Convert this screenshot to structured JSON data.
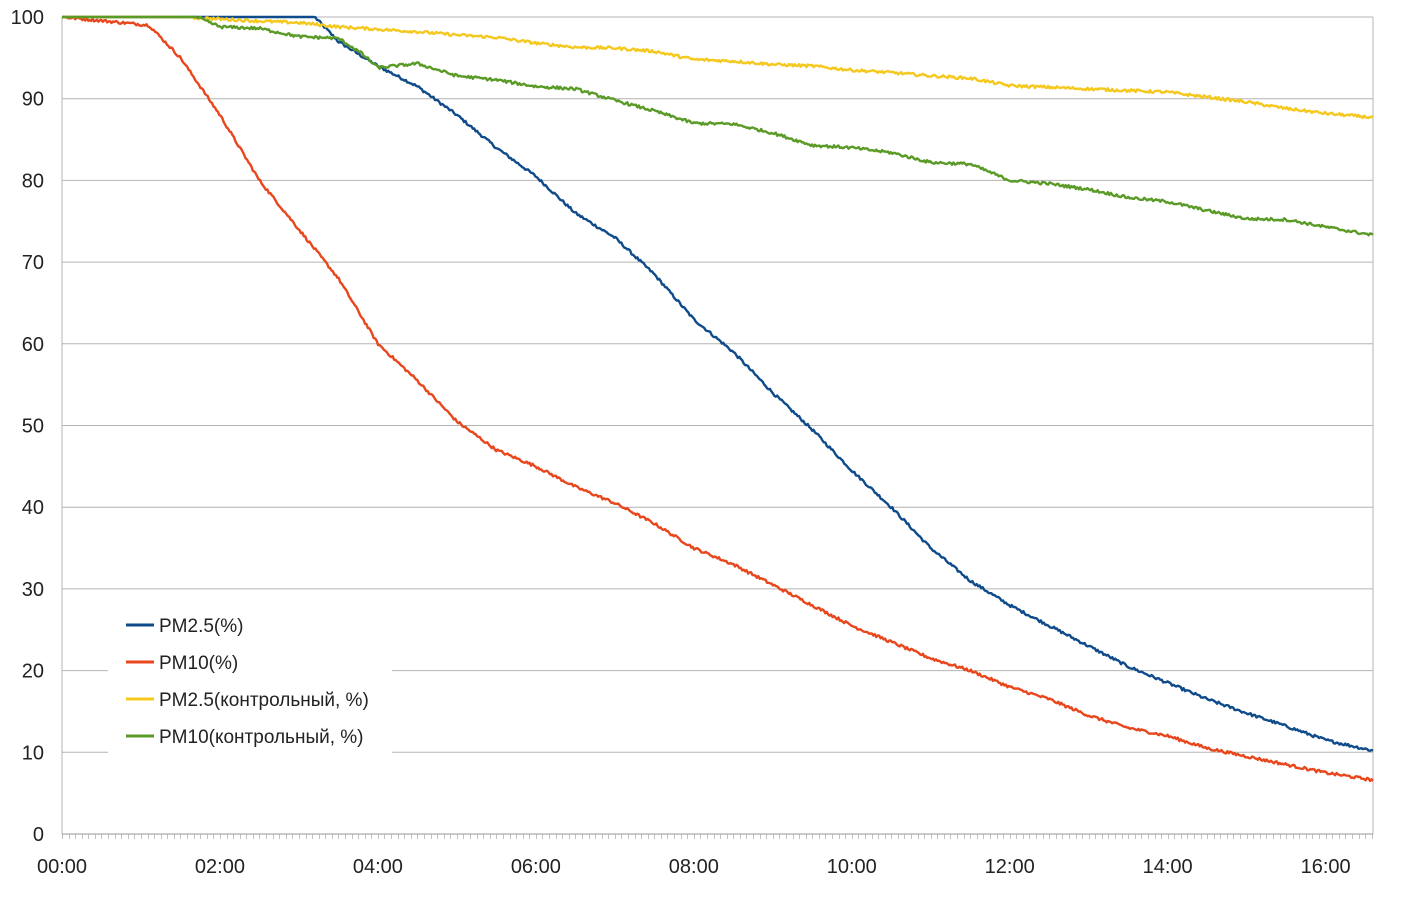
{
  "chart_data": {
    "type": "line",
    "title": "",
    "xlabel": "",
    "ylabel": "",
    "xlim": [
      0,
      16.6
    ],
    "ylim": [
      0,
      100
    ],
    "grid": true,
    "legend_position": "bottom-left",
    "x_ticks": [
      "00:00",
      "02:00",
      "04:00",
      "06:00",
      "08:00",
      "10:00",
      "12:00",
      "14:00",
      "16:00"
    ],
    "y_ticks": [
      "0",
      "10",
      "20",
      "30",
      "40",
      "50",
      "60",
      "70",
      "80",
      "90",
      "100"
    ],
    "x_unit_note": "hours",
    "series": [
      {
        "name": "PM2.5(%)",
        "color": "#0f4b8a",
        "x": [
          0,
          1,
          2,
          3.2,
          3.5,
          4,
          4.5,
          5,
          5.5,
          6,
          6.5,
          7,
          7.5,
          8,
          8.5,
          9,
          9.5,
          10,
          10.5,
          11,
          11.5,
          12,
          12.5,
          13,
          13.5,
          14,
          14.5,
          15,
          15.5,
          16,
          16.6
        ],
        "y": [
          100,
          100,
          100,
          100,
          97,
          94,
          91.5,
          88,
          84,
          80.5,
          76,
          73,
          68.5,
          63,
          59,
          54,
          49.5,
          44.5,
          40,
          35,
          31,
          28,
          25.5,
          23,
          20.5,
          18.5,
          16.5,
          14.8,
          13.2,
          11.5,
          10.2
        ]
      },
      {
        "name": "PM10(%)",
        "color": "#e8461c",
        "x": [
          0,
          1.1,
          1.5,
          2,
          2.5,
          3,
          3.5,
          4,
          4.5,
          5,
          5.5,
          6,
          6.5,
          7,
          7.5,
          8,
          8.5,
          9,
          9.5,
          10,
          10.5,
          11,
          11.5,
          12,
          12.5,
          13,
          13.5,
          14,
          14.5,
          15,
          15.5,
          16,
          16.6
        ],
        "y": [
          100,
          99,
          95,
          88,
          80,
          74,
          68,
          60,
          55.5,
          50.5,
          47,
          45,
          42.5,
          40.5,
          38,
          35,
          33,
          30.5,
          28,
          25.5,
          23.5,
          21.5,
          20,
          18,
          16.5,
          14.5,
          13,
          12,
          10.5,
          9.5,
          8.5,
          7.5,
          6.6
        ]
      },
      {
        "name": "PM2.5(контрольный, %)",
        "color": "#f5c81e",
        "x": [
          0,
          1.5,
          2.5,
          3,
          3.5,
          4,
          4.5,
          5,
          5.5,
          6,
          6.5,
          7,
          7.5,
          8,
          8.5,
          9,
          9.5,
          10,
          10.5,
          11,
          11.5,
          12,
          12.5,
          13,
          13.5,
          14,
          14.5,
          15,
          15.5,
          16,
          16.6
        ],
        "y": [
          100,
          100,
          99.5,
          99.3,
          98.8,
          98.5,
          98.2,
          97.8,
          97.5,
          96.8,
          96.3,
          96.2,
          95.8,
          94.8,
          94.6,
          94.2,
          94,
          93.5,
          93.2,
          92.8,
          92.5,
          91.6,
          91.4,
          91.2,
          91,
          90.8,
          90.2,
          89.6,
          88.8,
          88.2,
          87.7
        ]
      },
      {
        "name": "PM10(контрольный, %)",
        "color": "#5a9a26",
        "x": [
          0,
          1.7,
          2,
          2.5,
          3,
          3.5,
          3.8,
          4,
          4.5,
          5,
          5.5,
          6,
          6.5,
          7,
          7.5,
          8,
          8.5,
          9,
          9.5,
          10,
          10.5,
          11,
          11.5,
          12,
          12.5,
          13,
          13.5,
          14,
          14.5,
          15,
          15.5,
          16,
          16.6
        ],
        "y": [
          100,
          100,
          98.8,
          98.6,
          97.6,
          97.4,
          95.5,
          93.8,
          94.3,
          92.8,
          92.3,
          91.5,
          91.2,
          89.8,
          88.5,
          87,
          86.9,
          85.8,
          84.3,
          84,
          83.4,
          82.2,
          82,
          80,
          79.6,
          78.9,
          77.9,
          77.4,
          76.3,
          75.3,
          75.2,
          74.3,
          73.3
        ]
      }
    ]
  }
}
